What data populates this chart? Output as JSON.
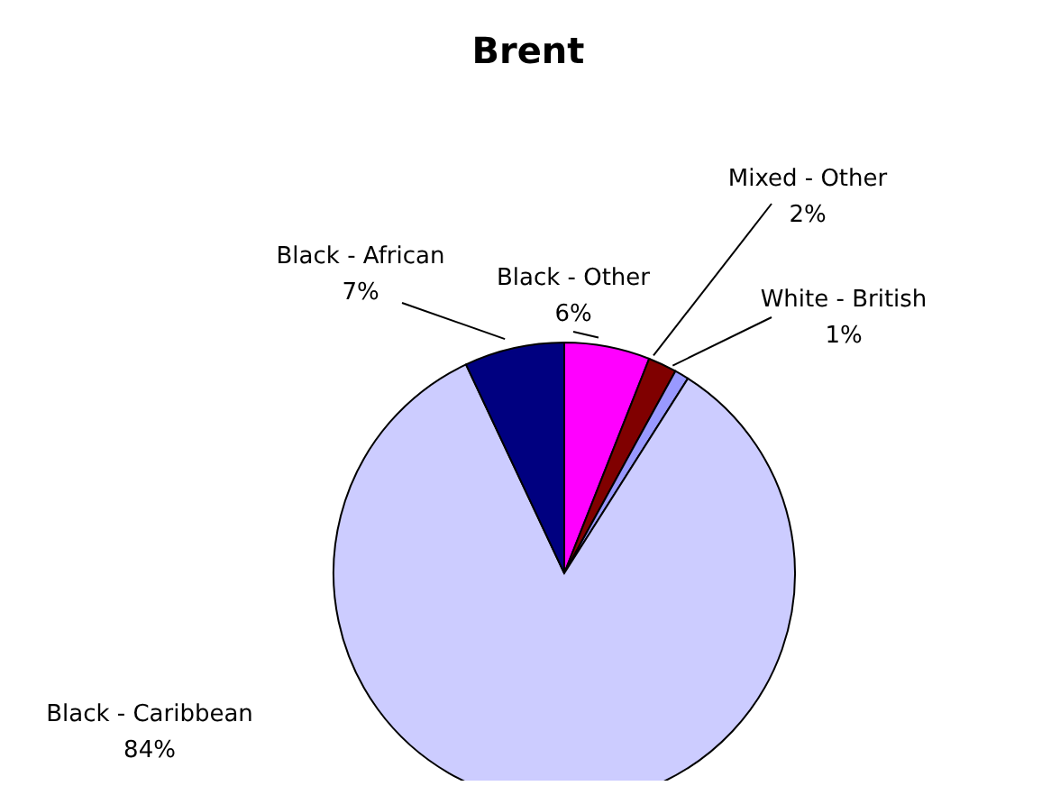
{
  "chart_data": {
    "type": "pie",
    "title": "Brent",
    "categories": [
      "Black - Other",
      "Mixed - Other",
      "White - British",
      "Black - Caribbean",
      "Black - African"
    ],
    "values": [
      6,
      2,
      1,
      84,
      7
    ],
    "value_labels": [
      "6%",
      "2%",
      "1%",
      "84%",
      "7%"
    ],
    "colors": [
      "#ff00ff",
      "#800000",
      "#9999ff",
      "#ccccff",
      "#000080"
    ]
  }
}
